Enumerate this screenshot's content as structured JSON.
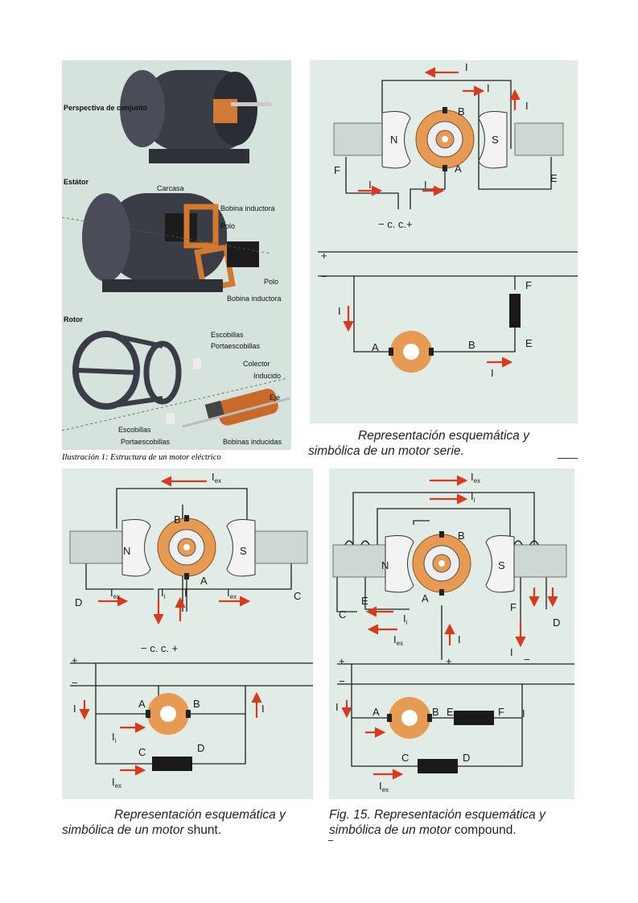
{
  "illustration": {
    "caption": "Ilustración 1: Estructura de un motor eléctrico",
    "sections": {
      "perspective": "Perspectiva de conjunto",
      "stator": "Estátor",
      "rotor": "Rotor"
    },
    "labels": {
      "carcasa": "Carcasa",
      "bobina_inductora_1": "Bobina inductora",
      "polo_1": "Polo",
      "polo_2": "Polo",
      "bobina_inductora_2": "Bobina inductora",
      "escobillas_top": "Escobillas",
      "portaescobillas_top": "Portaescobillas",
      "colector": "Colector",
      "inducido": "Inducido",
      "eje": "Eje",
      "escobillas_bottom": "Escobillas",
      "portaescobillas_bottom": "Portaescobillas",
      "bobinas_inducidas": "Bobinas inducidas"
    }
  },
  "series_motor": {
    "caption_line1": "Representación esquemática y",
    "caption_line2": "simbólica de un motor serie.",
    "labels": {
      "I": "I",
      "B": "B",
      "A": "A",
      "N": "N",
      "S": "S",
      "F": "F",
      "E": "E",
      "cc": "− c. c.+",
      "plus": "+",
      "minus": "−"
    }
  },
  "shunt_motor": {
    "caption_line1": "Representación esquemática y",
    "caption_line2_a": "simbólica de un motor",
    "caption_line2_b": " shunt.",
    "labels": {
      "I": "I",
      "ex": "ex",
      "i": "i",
      "B": "B",
      "A": "A",
      "N": "N",
      "S": "S",
      "C": "C",
      "D": "D",
      "cc": "− c. c. +",
      "plus": "+",
      "minus": "−"
    }
  },
  "compound_motor": {
    "caption_line1": "Fig. 15. Representación esquemática y",
    "caption_line2_a": "simbólica de un motor",
    "caption_line2_b": " compound.",
    "labels": {
      "I": "I",
      "ex": "ex",
      "i": "i",
      "B": "B",
      "A": "A",
      "N": "N",
      "S": "S",
      "C": "C",
      "D": "D",
      "E": "E",
      "F": "F",
      "plus": "+",
      "minus": "−"
    }
  },
  "colors": {
    "panel_bg": "#e2ece7",
    "illustration_bg": "#d5e3dc",
    "arrow": "#d9391f",
    "rotor_orange": "#e79a52",
    "wire": "#1f1f1f"
  }
}
